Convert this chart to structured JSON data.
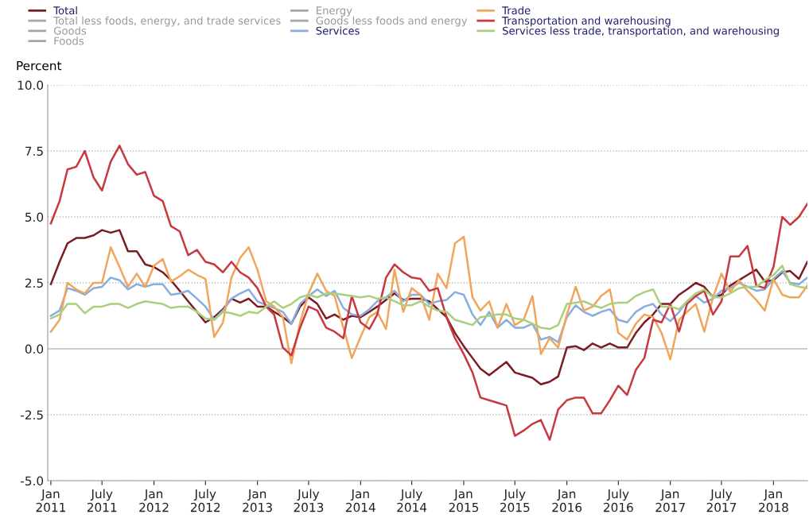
{
  "chart_data": {
    "type": "line",
    "ylabel": "Percent",
    "x": [
      "2011-01",
      "2011-02",
      "2011-03",
      "2011-04",
      "2011-05",
      "2011-06",
      "2011-07",
      "2011-08",
      "2011-09",
      "2011-10",
      "2011-11",
      "2011-12",
      "2012-01",
      "2012-02",
      "2012-03",
      "2012-04",
      "2012-05",
      "2012-06",
      "2012-07",
      "2012-08",
      "2012-09",
      "2012-10",
      "2012-11",
      "2012-12",
      "2013-01",
      "2013-02",
      "2013-03",
      "2013-04",
      "2013-05",
      "2013-06",
      "2013-07",
      "2013-08",
      "2013-09",
      "2013-10",
      "2013-11",
      "2013-12",
      "2014-01",
      "2014-02",
      "2014-03",
      "2014-04",
      "2014-05",
      "2014-06",
      "2014-07",
      "2014-08",
      "2014-09",
      "2014-10",
      "2014-11",
      "2014-12",
      "2015-01",
      "2015-02",
      "2015-03",
      "2015-04",
      "2015-05",
      "2015-06",
      "2015-07",
      "2015-08",
      "2015-09",
      "2015-10",
      "2015-11",
      "2015-12",
      "2016-01",
      "2016-02",
      "2016-03",
      "2016-04",
      "2016-05",
      "2016-06",
      "2016-07",
      "2016-08",
      "2016-09",
      "2016-10",
      "2016-11",
      "2016-12",
      "2017-01",
      "2017-02",
      "2017-03",
      "2017-04",
      "2017-05",
      "2017-06",
      "2017-07",
      "2017-08",
      "2017-09",
      "2017-10",
      "2017-11",
      "2017-12",
      "2018-01",
      "2018-02",
      "2018-03",
      "2018-04",
      "2018-05"
    ],
    "series": [
      {
        "name": "Total",
        "color": "#7a1c22",
        "values": [
          2.45,
          3.3,
          4.0,
          4.2,
          4.2,
          4.3,
          4.5,
          4.4,
          4.5,
          3.7,
          3.7,
          3.2,
          3.1,
          2.9,
          2.6,
          2.2,
          1.8,
          1.4,
          1.0,
          1.2,
          1.5,
          1.9,
          1.75,
          1.9,
          1.6,
          1.6,
          1.4,
          1.2,
          0.95,
          1.6,
          1.95,
          1.7,
          1.15,
          1.3,
          1.1,
          1.25,
          1.2,
          1.4,
          1.6,
          1.85,
          2.1,
          1.85,
          1.9,
          1.9,
          1.8,
          1.5,
          1.2,
          0.6,
          0.1,
          -0.35,
          -0.75,
          -1.0,
          -0.75,
          -0.5,
          -0.9,
          -1.0,
          -1.1,
          -1.35,
          -1.25,
          -1.05,
          0.05,
          0.1,
          -0.05,
          0.2,
          0.05,
          0.2,
          0.05,
          0.05,
          0.6,
          1.0,
          1.3,
          1.7,
          1.7,
          2.05,
          2.25,
          2.5,
          2.35,
          1.95,
          2.05,
          2.4,
          2.6,
          2.8,
          3.0,
          2.55,
          2.6,
          2.9,
          2.95,
          2.65,
          3.3
        ]
      },
      {
        "name": "Total less foods, energy, and trade services",
        "color": "#a6a6a6",
        "values": [
          null,
          null,
          null,
          null,
          null,
          null,
          null,
          null,
          null,
          null,
          null,
          null,
          null,
          null,
          null,
          null,
          null,
          null,
          null,
          null,
          null,
          null,
          null,
          null,
          null,
          null,
          null,
          null,
          null,
          null,
          null,
          null,
          null,
          null,
          null,
          null,
          null,
          null,
          null,
          null,
          null,
          null,
          null,
          null,
          null,
          null,
          null,
          null,
          null,
          null,
          null,
          null,
          null,
          null,
          null,
          null,
          null,
          null,
          null,
          null,
          null,
          null,
          null,
          null,
          null,
          null,
          null,
          null,
          null,
          null,
          null,
          null,
          null,
          null,
          null,
          null,
          null,
          null,
          null,
          null,
          null,
          null,
          null,
          null,
          null,
          null,
          null,
          null,
          null
        ]
      },
      {
        "name": "Goods",
        "color": "#a6a6a6",
        "values": [
          null,
          null,
          null,
          null,
          null,
          null,
          null,
          null,
          null,
          null,
          null,
          null,
          null,
          null,
          null,
          null,
          null,
          null,
          null,
          null,
          null,
          null,
          null,
          null,
          null,
          null,
          null,
          null,
          null,
          null,
          null,
          null,
          null,
          null,
          null,
          null,
          null,
          null,
          null,
          null,
          null,
          null,
          null,
          null,
          null,
          null,
          null,
          null,
          null,
          null,
          null,
          null,
          null,
          null,
          null,
          null,
          null,
          null,
          null,
          null,
          null,
          null,
          null,
          null,
          null,
          null,
          null,
          null,
          null,
          null,
          null,
          null,
          null,
          null,
          null,
          null,
          null,
          null,
          null,
          null,
          null,
          null,
          null,
          null,
          null,
          null,
          null,
          null,
          null
        ]
      },
      {
        "name": "Foods",
        "color": "#a6a6a6",
        "values": [
          null,
          null,
          null,
          null,
          null,
          null,
          null,
          null,
          null,
          null,
          null,
          null,
          null,
          null,
          null,
          null,
          null,
          null,
          null,
          null,
          null,
          null,
          null,
          null,
          null,
          null,
          null,
          null,
          null,
          null,
          null,
          null,
          null,
          null,
          null,
          null,
          null,
          null,
          null,
          null,
          null,
          null,
          null,
          null,
          null,
          null,
          null,
          null,
          null,
          null,
          null,
          null,
          null,
          null,
          null,
          null,
          null,
          null,
          null,
          null,
          null,
          null,
          null,
          null,
          null,
          null,
          null,
          null,
          null,
          null,
          null,
          null,
          null,
          null,
          null,
          null,
          null,
          null,
          null,
          null,
          null,
          null,
          null,
          null,
          null,
          null,
          null,
          null,
          null
        ]
      },
      {
        "name": "Energy",
        "color": "#a6a6a6",
        "values": [
          null,
          null,
          null,
          null,
          null,
          null,
          null,
          null,
          null,
          null,
          null,
          null,
          null,
          null,
          null,
          null,
          null,
          null,
          null,
          null,
          null,
          null,
          null,
          null,
          null,
          null,
          null,
          null,
          null,
          null,
          null,
          null,
          null,
          null,
          null,
          null,
          null,
          null,
          null,
          null,
          null,
          null,
          null,
          null,
          null,
          null,
          null,
          null,
          null,
          null,
          null,
          null,
          null,
          null,
          null,
          null,
          null,
          null,
          null,
          null,
          null,
          null,
          null,
          null,
          null,
          null,
          null,
          null,
          null,
          null,
          null,
          null,
          null,
          null,
          null,
          null,
          null,
          null,
          null,
          null,
          null,
          null,
          null,
          null,
          null,
          null,
          null,
          null,
          null
        ]
      },
      {
        "name": "Goods less foods and energy",
        "color": "#a6a6a6",
        "values": [
          null,
          null,
          null,
          null,
          null,
          null,
          null,
          null,
          null,
          null,
          null,
          null,
          null,
          null,
          null,
          null,
          null,
          null,
          null,
          null,
          null,
          null,
          null,
          null,
          null,
          null,
          null,
          null,
          null,
          null,
          null,
          null,
          null,
          null,
          null,
          null,
          null,
          null,
          null,
          null,
          null,
          null,
          null,
          null,
          null,
          null,
          null,
          null,
          null,
          null,
          null,
          null,
          null,
          null,
          null,
          null,
          null,
          null,
          null,
          null,
          null,
          null,
          null,
          null,
          null,
          null,
          null,
          null,
          null,
          null,
          null,
          null,
          null,
          null,
          null,
          null,
          null,
          null,
          null,
          null,
          null,
          null,
          null,
          null,
          null,
          null,
          null,
          null,
          null
        ]
      },
      {
        "name": "Services",
        "color": "#86aee0",
        "values": [
          1.25,
          1.45,
          2.3,
          2.2,
          2.05,
          2.3,
          2.35,
          2.7,
          2.6,
          2.25,
          2.45,
          2.35,
          2.45,
          2.45,
          2.05,
          2.1,
          2.2,
          1.9,
          1.6,
          1.1,
          1.45,
          1.9,
          2.1,
          2.25,
          1.8,
          1.65,
          1.55,
          1.4,
          0.95,
          1.7,
          2.0,
          2.25,
          2.0,
          2.2,
          1.55,
          1.3,
          1.25,
          1.5,
          1.8,
          1.95,
          2.2,
          1.8,
          2.05,
          2.05,
          1.7,
          1.8,
          1.85,
          2.15,
          2.05,
          1.3,
          0.9,
          1.4,
          0.8,
          1.1,
          0.8,
          0.8,
          0.95,
          0.35,
          0.45,
          0.25,
          1.2,
          1.65,
          1.4,
          1.25,
          1.4,
          1.5,
          1.1,
          1.0,
          1.4,
          1.6,
          1.7,
          1.3,
          1.05,
          1.4,
          1.8,
          2.0,
          1.75,
          1.9,
          2.2,
          2.3,
          2.5,
          2.35,
          2.2,
          2.25,
          2.65,
          2.95,
          2.5,
          2.45,
          2.7
        ]
      },
      {
        "name": "Trade",
        "color": "#f0a55a",
        "values": [
          0.65,
          1.1,
          2.5,
          2.25,
          2.1,
          2.5,
          2.5,
          3.85,
          3.1,
          2.35,
          2.85,
          2.35,
          3.15,
          3.4,
          2.55,
          2.75,
          3.0,
          2.8,
          2.65,
          0.45,
          1.0,
          2.7,
          3.45,
          3.85,
          3.0,
          1.8,
          1.6,
          1.2,
          -0.55,
          1.0,
          2.1,
          2.85,
          2.2,
          2.0,
          0.8,
          -0.35,
          0.45,
          1.2,
          1.4,
          0.75,
          3.0,
          1.4,
          2.3,
          2.05,
          1.1,
          2.85,
          2.3,
          4.0,
          4.25,
          1.95,
          1.45,
          1.8,
          0.8,
          1.7,
          0.9,
          1.1,
          2.0,
          -0.2,
          0.4,
          0.05,
          1.3,
          2.35,
          1.45,
          1.6,
          2.0,
          2.25,
          0.6,
          0.35,
          0.95,
          1.3,
          1.2,
          0.6,
          -0.4,
          1.1,
          1.4,
          1.7,
          0.65,
          1.95,
          2.85,
          2.15,
          2.6,
          2.2,
          1.85,
          1.45,
          2.65,
          2.05,
          1.95,
          1.95,
          2.4
        ]
      },
      {
        "name": "Transportation and warehousing",
        "color": "#c8393f",
        "values": [
          4.75,
          5.6,
          6.8,
          6.9,
          7.5,
          6.5,
          6.0,
          7.1,
          7.7,
          7.0,
          6.6,
          6.7,
          5.8,
          5.6,
          4.65,
          4.45,
          3.55,
          3.75,
          3.3,
          3.2,
          2.9,
          3.3,
          2.9,
          2.7,
          2.3,
          1.6,
          1.3,
          0.05,
          -0.25,
          0.8,
          1.6,
          1.45,
          0.8,
          0.65,
          0.4,
          2.0,
          1.0,
          0.75,
          1.3,
          2.7,
          3.2,
          2.9,
          2.7,
          2.65,
          2.2,
          2.3,
          1.2,
          0.4,
          -0.2,
          -0.9,
          -1.85,
          -1.95,
          -2.05,
          -2.15,
          -3.3,
          -3.1,
          -2.85,
          -2.7,
          -3.45,
          -2.3,
          -1.95,
          -1.85,
          -1.85,
          -2.45,
          -2.45,
          -1.95,
          -1.4,
          -1.75,
          -0.8,
          -0.35,
          1.1,
          1.0,
          1.7,
          0.65,
          1.7,
          2.0,
          2.2,
          1.3,
          1.8,
          3.5,
          3.5,
          3.9,
          2.4,
          2.3,
          3.1,
          5.0,
          4.7,
          5.0,
          5.5
        ]
      },
      {
        "name": "Services less trade, transportation, and warehousing",
        "color": "#a9d07c",
        "values": [
          1.15,
          1.3,
          1.7,
          1.7,
          1.35,
          1.6,
          1.6,
          1.7,
          1.7,
          1.55,
          1.7,
          1.8,
          1.75,
          1.7,
          1.55,
          1.6,
          1.6,
          1.4,
          1.15,
          1.1,
          1.4,
          1.35,
          1.25,
          1.4,
          1.35,
          1.6,
          1.8,
          1.55,
          1.7,
          1.95,
          2.05,
          1.95,
          2.1,
          2.1,
          2.05,
          2.0,
          1.95,
          2.0,
          1.9,
          1.95,
          1.8,
          1.65,
          1.65,
          1.8,
          1.6,
          1.45,
          1.4,
          1.1,
          1.0,
          0.9,
          1.2,
          1.25,
          1.3,
          1.3,
          1.15,
          1.1,
          0.95,
          0.8,
          0.75,
          0.9,
          1.7,
          1.75,
          1.8,
          1.65,
          1.55,
          1.7,
          1.75,
          1.75,
          2.0,
          2.15,
          2.25,
          1.6,
          1.6,
          1.5,
          1.8,
          2.1,
          2.25,
          1.95,
          1.95,
          2.1,
          2.3,
          2.35,
          2.35,
          2.6,
          2.8,
          3.15,
          2.45,
          2.35,
          2.3
        ]
      }
    ],
    "xlim": [
      "2010-12-21",
      "2018-05-01"
    ],
    "xticks": [
      {
        "value": "2011-01",
        "label": "Jan\n2011"
      },
      {
        "value": "2011-07",
        "label": "July\n2011"
      },
      {
        "value": "2012-01",
        "label": "Jan\n2012"
      },
      {
        "value": "2012-07",
        "label": "July\n2012"
      },
      {
        "value": "2013-01",
        "label": "Jan\n2013"
      },
      {
        "value": "2013-07",
        "label": "July\n2013"
      },
      {
        "value": "2014-01",
        "label": "Jan\n2014"
      },
      {
        "value": "2014-07",
        "label": "July\n2014"
      },
      {
        "value": "2015-01",
        "label": "Jan\n2015"
      },
      {
        "value": "2015-07",
        "label": "July\n2015"
      },
      {
        "value": "2016-01",
        "label": "Jan\n2016"
      },
      {
        "value": "2016-07",
        "label": "July\n2016"
      },
      {
        "value": "2017-01",
        "label": "Jan\n2017"
      },
      {
        "value": "2017-07",
        "label": "July\n2017"
      },
      {
        "value": "2018-01",
        "label": "Jan\n2018"
      }
    ],
    "ylim": [
      -5,
      10
    ],
    "yticks": [
      {
        "value": -5,
        "label": "-5.0"
      },
      {
        "value": -2.5,
        "label": "-2.5"
      },
      {
        "value": 0,
        "label": "0.0"
      },
      {
        "value": 2.5,
        "label": "2.5"
      },
      {
        "value": 5,
        "label": "5.0"
      },
      {
        "value": 7.5,
        "label": "7.5"
      },
      {
        "value": 10,
        "label": "10.0"
      }
    ],
    "grid": "y",
    "ref_lines": [
      {
        "axis": "y",
        "value": 0,
        "color": "#c0c0c0",
        "line_style": "solid"
      }
    ],
    "legend": "top",
    "marker": "none",
    "line_style": "solid"
  }
}
